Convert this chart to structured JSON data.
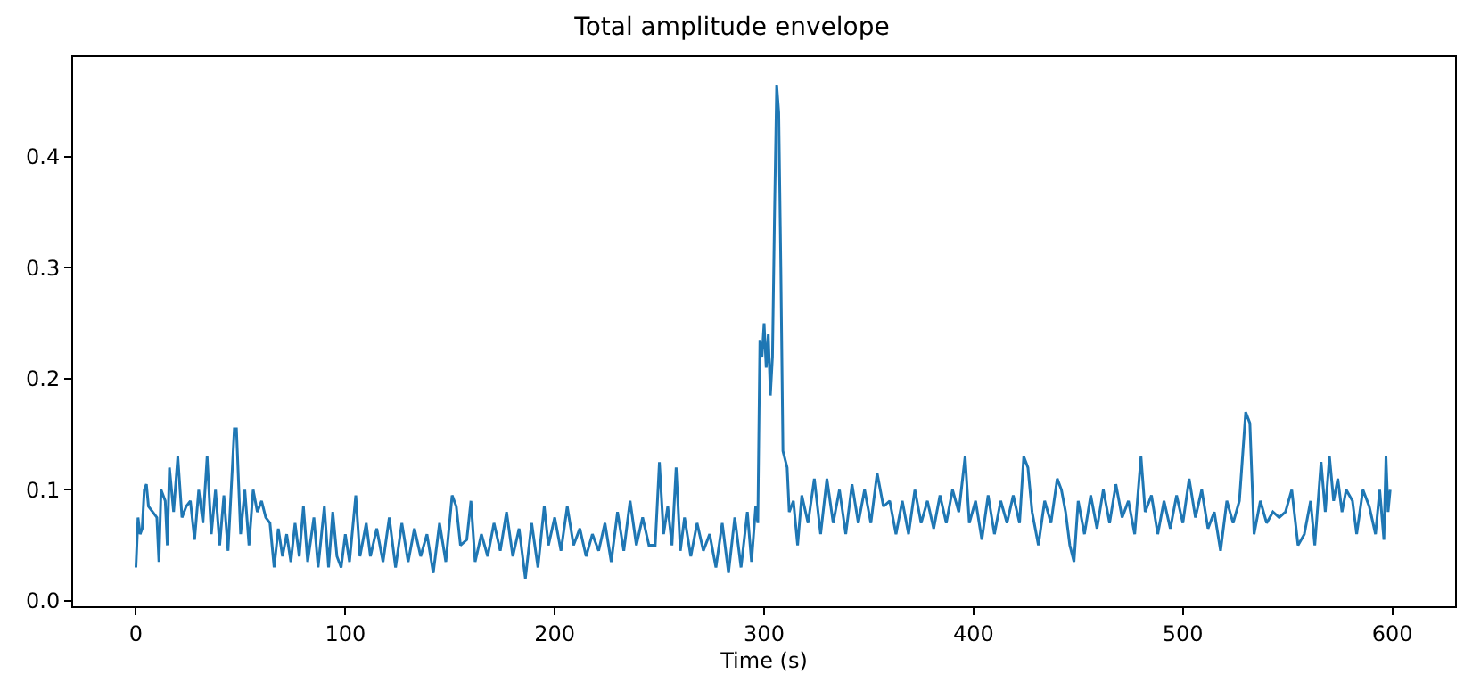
{
  "chart_data": {
    "type": "line",
    "title": "Total amplitude envelope",
    "xlabel": "Time (s)",
    "x": [
      0,
      1,
      2,
      3,
      4,
      5,
      6,
      8,
      10,
      11,
      12,
      14,
      15,
      16,
      18,
      20,
      22,
      24,
      26,
      28,
      30,
      32,
      34,
      36,
      38,
      40,
      42,
      44,
      47,
      48,
      50,
      52,
      54,
      56,
      58,
      60,
      62,
      64,
      66,
      68,
      70,
      72,
      74,
      76,
      78,
      80,
      82,
      85,
      87,
      90,
      92,
      94,
      96,
      98,
      100,
      102,
      105,
      107,
      110,
      112,
      115,
      118,
      121,
      124,
      127,
      130,
      133,
      136,
      139,
      142,
      145,
      148,
      151,
      153,
      155,
      158,
      160,
      162,
      165,
      168,
      171,
      174,
      177,
      180,
      183,
      186,
      189,
      192,
      195,
      197,
      200,
      203,
      206,
      209,
      212,
      215,
      218,
      221,
      224,
      227,
      230,
      233,
      236,
      239,
      242,
      245,
      248,
      250,
      252,
      254,
      256,
      258,
      260,
      262,
      265,
      268,
      271,
      274,
      277,
      280,
      283,
      286,
      289,
      292,
      294,
      296,
      297,
      298,
      299,
      300,
      301,
      302,
      303,
      304,
      305,
      306,
      307,
      308,
      309,
      311,
      312,
      314,
      316,
      318,
      321,
      324,
      327,
      330,
      333,
      336,
      339,
      342,
      345,
      348,
      351,
      354,
      357,
      360,
      363,
      366,
      369,
      372,
      375,
      378,
      381,
      384,
      387,
      390,
      393,
      396,
      398,
      401,
      404,
      407,
      410,
      413,
      416,
      419,
      422,
      424,
      426,
      428,
      431,
      434,
      437,
      440,
      442,
      444,
      446,
      448,
      450,
      453,
      456,
      459,
      462,
      465,
      468,
      471,
      474,
      477,
      480,
      482,
      485,
      488,
      491,
      494,
      497,
      500,
      503,
      506,
      509,
      512,
      515,
      518,
      521,
      524,
      527,
      530,
      532,
      534,
      537,
      540,
      543,
      546,
      549,
      552,
      555,
      558,
      561,
      563,
      566,
      568,
      570,
      572,
      574,
      576,
      578,
      581,
      583,
      586,
      589,
      592,
      594,
      596,
      597,
      598,
      599
    ],
    "series": [
      {
        "color": "#1f77b4",
        "values": [
          0.03,
          0.075,
          0.06,
          0.065,
          0.1,
          0.105,
          0.085,
          0.08,
          0.075,
          0.035,
          0.1,
          0.09,
          0.05,
          0.12,
          0.08,
          0.13,
          0.075,
          0.085,
          0.09,
          0.055,
          0.1,
          0.07,
          0.13,
          0.06,
          0.1,
          0.05,
          0.095,
          0.045,
          0.155,
          0.155,
          0.06,
          0.1,
          0.05,
          0.1,
          0.08,
          0.09,
          0.075,
          0.07,
          0.03,
          0.065,
          0.04,
          0.06,
          0.035,
          0.07,
          0.04,
          0.085,
          0.035,
          0.075,
          0.03,
          0.085,
          0.03,
          0.08,
          0.04,
          0.03,
          0.06,
          0.035,
          0.095,
          0.04,
          0.07,
          0.04,
          0.065,
          0.035,
          0.075,
          0.03,
          0.07,
          0.035,
          0.065,
          0.04,
          0.06,
          0.025,
          0.07,
          0.035,
          0.095,
          0.085,
          0.05,
          0.055,
          0.09,
          0.035,
          0.06,
          0.04,
          0.07,
          0.045,
          0.08,
          0.04,
          0.065,
          0.02,
          0.07,
          0.03,
          0.085,
          0.05,
          0.075,
          0.045,
          0.085,
          0.05,
          0.065,
          0.04,
          0.06,
          0.045,
          0.07,
          0.035,
          0.08,
          0.045,
          0.09,
          0.05,
          0.075,
          0.05,
          0.05,
          0.125,
          0.06,
          0.085,
          0.05,
          0.12,
          0.045,
          0.075,
          0.04,
          0.07,
          0.045,
          0.06,
          0.03,
          0.07,
          0.025,
          0.075,
          0.03,
          0.08,
          0.035,
          0.085,
          0.07,
          0.235,
          0.22,
          0.25,
          0.21,
          0.24,
          0.185,
          0.22,
          0.35,
          0.465,
          0.44,
          0.3,
          0.135,
          0.12,
          0.08,
          0.09,
          0.05,
          0.095,
          0.07,
          0.11,
          0.06,
          0.11,
          0.07,
          0.1,
          0.06,
          0.105,
          0.07,
          0.1,
          0.07,
          0.115,
          0.085,
          0.09,
          0.06,
          0.09,
          0.06,
          0.1,
          0.07,
          0.09,
          0.065,
          0.095,
          0.07,
          0.1,
          0.08,
          0.13,
          0.07,
          0.09,
          0.055,
          0.095,
          0.06,
          0.09,
          0.07,
          0.095,
          0.07,
          0.13,
          0.12,
          0.08,
          0.05,
          0.09,
          0.07,
          0.11,
          0.1,
          0.08,
          0.05,
          0.035,
          0.09,
          0.06,
          0.095,
          0.065,
          0.1,
          0.07,
          0.105,
          0.075,
          0.09,
          0.06,
          0.13,
          0.08,
          0.095,
          0.06,
          0.09,
          0.065,
          0.095,
          0.07,
          0.11,
          0.075,
          0.1,
          0.065,
          0.08,
          0.045,
          0.09,
          0.07,
          0.09,
          0.17,
          0.16,
          0.06,
          0.09,
          0.07,
          0.08,
          0.075,
          0.08,
          0.1,
          0.05,
          0.06,
          0.09,
          0.05,
          0.125,
          0.08,
          0.13,
          0.09,
          0.11,
          0.08,
          0.1,
          0.09,
          0.06,
          0.1,
          0.085,
          0.06,
          0.1,
          0.055,
          0.13,
          0.08,
          0.1
        ]
      }
    ],
    "xlim": [
      -30,
      630
    ],
    "xticks": [
      0,
      100,
      200,
      300,
      400,
      500,
      600
    ],
    "ylim": [
      -0.005,
      0.49
    ],
    "yticks": [
      {
        "value": 0,
        "label": "0.0"
      },
      0.1,
      0.2,
      0.3,
      0.4
    ],
    "marker": "none",
    "line_style": "solid"
  }
}
